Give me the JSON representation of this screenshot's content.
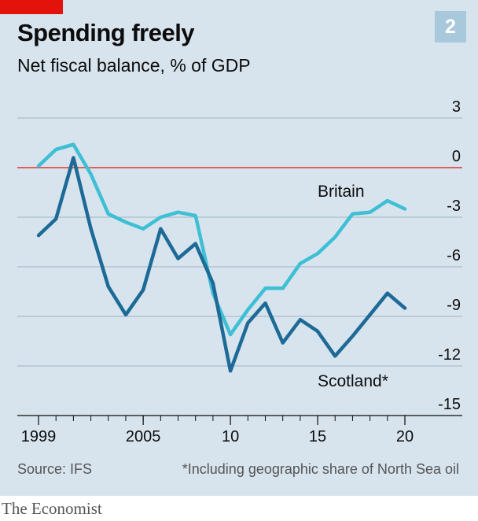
{
  "badge": "2",
  "source": "Source: IFS",
  "footnote": "*Including geographic share of North Sea oil",
  "brand": "The Economist",
  "colors": {
    "background": "#d7e4ee",
    "britain": "#3ebfd4",
    "scotland": "#1d6a96",
    "zero_line": "#e3120b",
    "grid": "#9fb3c1"
  },
  "chart_data": {
    "type": "line",
    "title": "Spending freely",
    "subtitle": "Net fiscal balance, % of GDP",
    "x": [
      1999,
      2000,
      2001,
      2002,
      2003,
      2004,
      2005,
      2006,
      2007,
      2008,
      2009,
      2010,
      2011,
      2012,
      2013,
      2014,
      2015,
      2016,
      2017,
      2018,
      2019,
      2020
    ],
    "x_tick_values": [
      1999,
      2005,
      2010,
      2015,
      2020
    ],
    "x_tick_labels": [
      "1999",
      "2005",
      "10",
      "15",
      "20"
    ],
    "y_ticks": [
      3,
      0,
      -3,
      -6,
      -9,
      -12,
      -15
    ],
    "y_tick_labels": [
      "3",
      "0",
      "-3",
      "-6",
      "-9",
      "-12",
      "-15"
    ],
    "ylim": [
      -15,
      3
    ],
    "grid": true,
    "series": [
      {
        "name": "Britain",
        "values": [
          0.1,
          1.1,
          1.4,
          -0.4,
          -2.8,
          -3.3,
          -3.7,
          -3.0,
          -2.7,
          -2.9,
          -7.6,
          -10.1,
          -8.6,
          -7.3,
          -7.3,
          -5.8,
          -5.2,
          -4.2,
          -2.8,
          -2.7,
          -2.0,
          -2.5
        ]
      },
      {
        "name": "Scotland*",
        "values": [
          -4.1,
          -3.1,
          0.6,
          -3.7,
          -7.2,
          -8.9,
          -7.4,
          -3.7,
          -5.5,
          -4.6,
          -7.0,
          -12.3,
          -9.4,
          -8.2,
          -10.6,
          -9.2,
          -9.9,
          -11.4,
          -10.2,
          -8.9,
          -7.6,
          -8.5
        ]
      }
    ]
  }
}
